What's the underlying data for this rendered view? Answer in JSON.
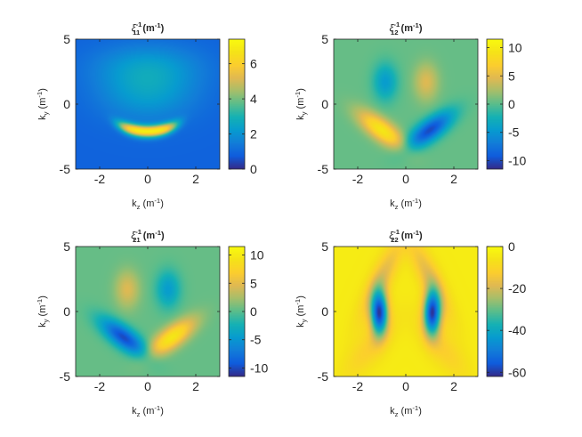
{
  "chart_data": [
    {
      "type": "heatmap",
      "title": {
        "sym": "ξ",
        "sub": "11",
        "sup": "-1",
        "unit": " (m",
        "unit_sup": "-1",
        "unit_close": ")"
      },
      "xlabel": {
        "base": "k",
        "sub": "z",
        "unit": " (m",
        "unit_sup": "-1",
        "unit_close": ")"
      },
      "ylabel": {
        "base": "k",
        "sub": "y",
        "unit": " (m",
        "unit_sup": "-1",
        "unit_close": ")"
      },
      "xlim": [
        -3,
        3
      ],
      "ylim": [
        -5,
        5
      ],
      "xticks": [
        -2,
        0,
        2
      ],
      "yticks": [
        -5,
        0,
        5
      ],
      "clim": [
        0,
        7.4
      ],
      "cticks": [
        0,
        2,
        4,
        6
      ],
      "colormap": "parula",
      "background": 0.9,
      "features": [
        {
          "kz": 0,
          "ky": -2.1,
          "value": 6.8,
          "shape": "arc",
          "radius": 1.0,
          "curvature": 0.35,
          "width_kz": 1.05
        },
        {
          "kz": 0,
          "ky": 1.0,
          "value": 2.4,
          "shape": "dome",
          "sigma_kz": 1.4,
          "sigma_ky": 1.6
        },
        {
          "kz": 0,
          "ky": 3.0,
          "value": 1.6,
          "shape": "dome",
          "sigma_kz": 1.6,
          "sigma_ky": 1.2
        }
      ]
    },
    {
      "type": "heatmap",
      "title": {
        "sym": "ξ",
        "sub": "12",
        "sup": "-1",
        "unit": " (m",
        "unit_sup": "-1",
        "unit_close": ")"
      },
      "xlabel": {
        "base": "k",
        "sub": "z",
        "unit": " (m",
        "unit_sup": "-1",
        "unit_close": ")"
      },
      "ylabel": {
        "base": "k",
        "sub": "y",
        "unit": " (m",
        "unit_sup": "-1",
        "unit_close": ")"
      },
      "xlim": [
        -3,
        3
      ],
      "ylim": [
        -5,
        5
      ],
      "xticks": [
        -2,
        0,
        2
      ],
      "yticks": [
        -5,
        0,
        5
      ],
      "clim": [
        -11.5,
        11.5
      ],
      "cticks": [
        -10,
        -5,
        0,
        5,
        10
      ],
      "colormap": "parula",
      "background": 0.4,
      "features": [
        {
          "kz": -1.0,
          "ky": -2.0,
          "value": 9.5,
          "sigma_kz": 0.45,
          "sigma_ky": 1.0,
          "tilt": -0.5
        },
        {
          "kz": 1.0,
          "ky": -2.0,
          "value": -10.0,
          "sigma_kz": 0.45,
          "sigma_ky": 1.0,
          "tilt": 0.5
        },
        {
          "kz": -0.85,
          "ky": 1.7,
          "value": -4.5,
          "sigma_kz": 0.35,
          "sigma_ky": 1.0
        },
        {
          "kz": 0.85,
          "ky": 1.7,
          "value": 4.5,
          "sigma_kz": 0.35,
          "sigma_ky": 1.0
        }
      ]
    },
    {
      "type": "heatmap",
      "title": {
        "sym": "ξ",
        "sub": "21",
        "sup": "-1",
        "unit": " (m",
        "unit_sup": "-1",
        "unit_close": ")"
      },
      "xlabel": {
        "base": "k",
        "sub": "z",
        "unit": " (m",
        "unit_sup": "-1",
        "unit_close": ")"
      },
      "ylabel": {
        "base": "k",
        "sub": "y",
        "unit": " (m",
        "unit_sup": "-1",
        "unit_close": ")"
      },
      "xlim": [
        -3,
        3
      ],
      "ylim": [
        -5,
        5
      ],
      "xticks": [
        -2,
        0,
        2
      ],
      "yticks": [
        -5,
        0,
        5
      ],
      "clim": [
        -11.5,
        11.5
      ],
      "cticks": [
        -10,
        -5,
        0,
        5,
        10
      ],
      "colormap": "parula",
      "background": 0.4,
      "features": [
        {
          "kz": -1.0,
          "ky": -2.0,
          "value": -10.0,
          "sigma_kz": 0.45,
          "sigma_ky": 1.0,
          "tilt": -0.5
        },
        {
          "kz": 1.0,
          "ky": -2.0,
          "value": 9.5,
          "sigma_kz": 0.45,
          "sigma_ky": 1.0,
          "tilt": 0.5
        },
        {
          "kz": -0.85,
          "ky": 1.7,
          "value": 4.5,
          "sigma_kz": 0.35,
          "sigma_ky": 1.0
        },
        {
          "kz": 0.85,
          "ky": 1.7,
          "value": -4.5,
          "sigma_kz": 0.35,
          "sigma_ky": 1.0
        }
      ]
    },
    {
      "type": "heatmap",
      "title": {
        "sym": "ξ",
        "sub": "22",
        "sup": "-1",
        "unit": " (m",
        "unit_sup": "-1",
        "unit_close": ")"
      },
      "xlabel": {
        "base": "k",
        "sub": "z",
        "unit": " (m",
        "unit_sup": "-1",
        "unit_close": ")"
      },
      "ylabel": {
        "base": "k",
        "sub": "y",
        "unit": " (m",
        "unit_sup": "-1",
        "unit_close": ")"
      },
      "xlim": [
        -3,
        3
      ],
      "ylim": [
        -5,
        5
      ],
      "xticks": [
        -2,
        0,
        2
      ],
      "yticks": [
        -5,
        0,
        5
      ],
      "clim": [
        -62,
        0
      ],
      "cticks": [
        -60,
        -40,
        -20,
        0
      ],
      "colormap": "parula",
      "background": -4,
      "features": [
        {
          "kz": -1.1,
          "ky": -0.1,
          "value": -58,
          "sigma_kz": 0.25,
          "sigma_ky": 1.2
        },
        {
          "kz": 1.1,
          "ky": -0.1,
          "value": -58,
          "sigma_kz": 0.25,
          "sigma_ky": 1.2
        },
        {
          "kz": -1.0,
          "ky": 2.6,
          "value": -18,
          "sigma_kz": 0.35,
          "sigma_ky": 2.2,
          "tilt": 0.25
        },
        {
          "kz": 1.0,
          "ky": 2.6,
          "value": -18,
          "sigma_kz": 0.35,
          "sigma_ky": 2.2,
          "tilt": -0.25
        },
        {
          "kz": -1.5,
          "ky": -2.8,
          "value": -12,
          "sigma_kz": 0.5,
          "sigma_ky": 1.6,
          "tilt": 0.35
        },
        {
          "kz": 1.5,
          "ky": -2.8,
          "value": -12,
          "sigma_kz": 0.5,
          "sigma_ky": 1.6,
          "tilt": -0.35
        }
      ]
    }
  ]
}
